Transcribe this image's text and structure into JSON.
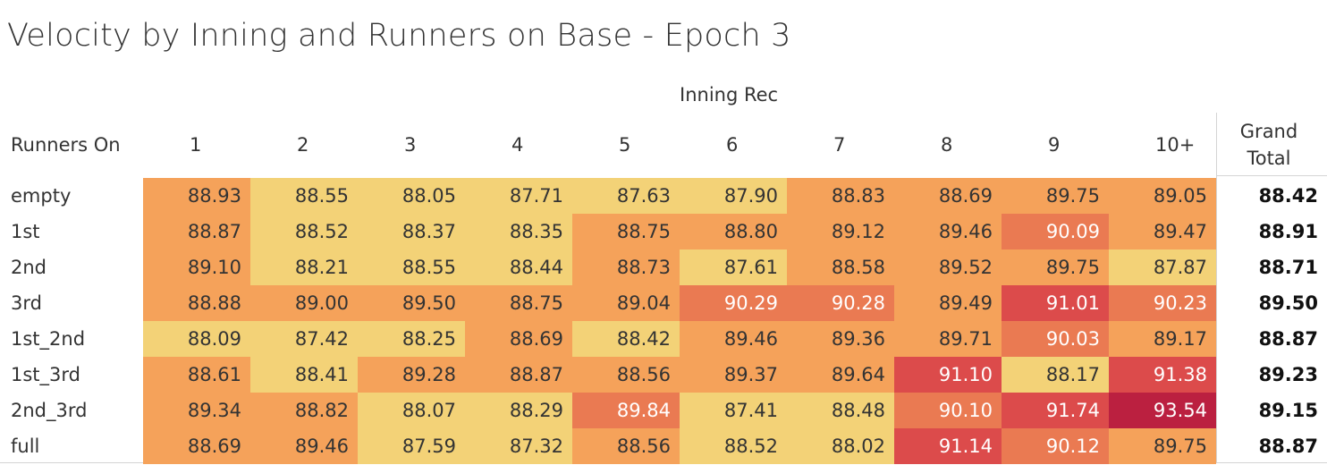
{
  "title": "Velocity by Inning and Runners on Base - Epoch 3",
  "column_group_label": "Inning Rec",
  "row_header_label": "Runners On",
  "grand_total_label": "Grand Total",
  "colors": {
    "low": "#f3d277",
    "mid": "#f5a25a",
    "high_mid": "#ea7a52",
    "high": "#dc4b4b",
    "max": "#bb2040"
  },
  "chart_data": {
    "type": "heatmap",
    "title": "Velocity by Inning and Runners on Base - Epoch 3",
    "xlabel": "Inning Rec",
    "ylabel": "Runners On",
    "columns": [
      "1",
      "2",
      "3",
      "4",
      "5",
      "6",
      "7",
      "8",
      "9",
      "10+"
    ],
    "rows": [
      "empty",
      "1st",
      "2nd",
      "3rd",
      "1st_2nd",
      "1st_3rd",
      "2nd_3rd",
      "full"
    ],
    "values": [
      [
        "88.93",
        "88.55",
        "88.05",
        "87.71",
        "87.63",
        "87.90",
        "88.83",
        "88.69",
        "89.75",
        "89.05"
      ],
      [
        "88.87",
        "88.52",
        "88.37",
        "88.35",
        "88.75",
        "88.80",
        "89.12",
        "89.46",
        "90.09",
        "89.47"
      ],
      [
        "89.10",
        "88.21",
        "88.55",
        "88.44",
        "88.73",
        "87.61",
        "88.58",
        "89.52",
        "89.75",
        "87.87"
      ],
      [
        "88.88",
        "89.00",
        "89.50",
        "88.75",
        "89.04",
        "90.29",
        "90.28",
        "89.49",
        "91.01",
        "90.23"
      ],
      [
        "88.09",
        "87.42",
        "88.25",
        "88.69",
        "88.42",
        "89.46",
        "89.36",
        "89.71",
        "90.03",
        "89.17"
      ],
      [
        "88.61",
        "88.41",
        "89.28",
        "88.87",
        "88.56",
        "89.37",
        "89.64",
        "91.10",
        "88.17",
        "91.38"
      ],
      [
        "89.34",
        "88.82",
        "88.07",
        "88.29",
        "89.84",
        "87.41",
        "88.48",
        "90.10",
        "91.74",
        "93.54"
      ],
      [
        "88.69",
        "89.46",
        "87.59",
        "87.32",
        "88.56",
        "88.52",
        "88.02",
        "91.14",
        "90.12",
        "89.75"
      ]
    ],
    "grand_total": [
      "88.42",
      "88.91",
      "88.71",
      "89.50",
      "88.87",
      "89.23",
      "89.15",
      "88.87"
    ]
  }
}
